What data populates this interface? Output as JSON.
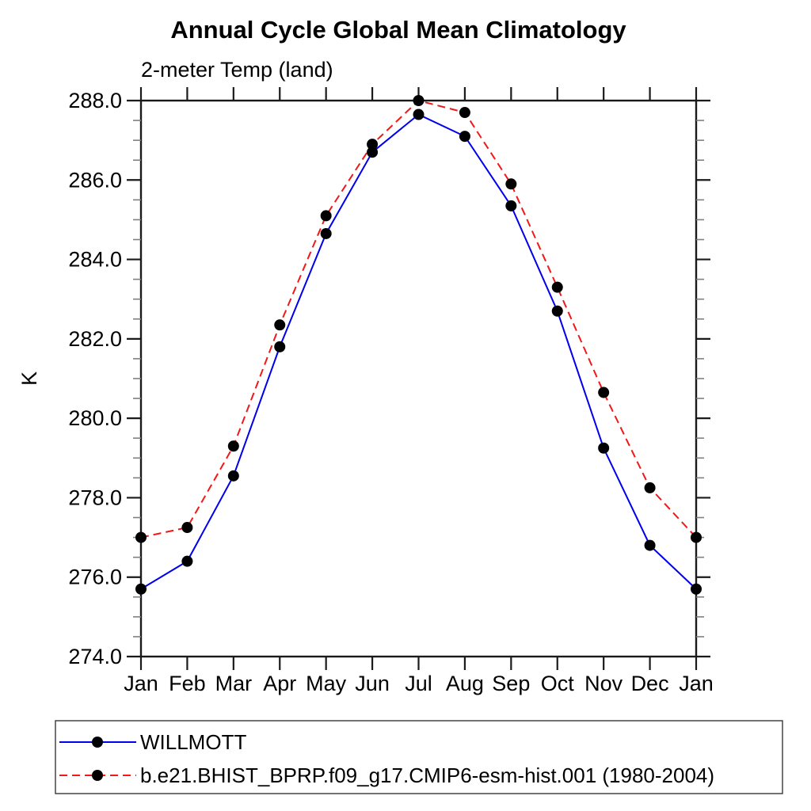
{
  "title": "Annual Cycle Global Mean Climatology",
  "subtitle": "2-meter Temp (land)",
  "colors": {
    "background": "#ffffff",
    "axis": "#1a1a1a",
    "minor_tick": "#808080",
    "marker": "#000000",
    "series_blue": "#0000ee",
    "series_red": "#f01818"
  },
  "chart_data": {
    "type": "line",
    "title": "Annual Cycle Global Mean Climatology",
    "subtitle": "2-meter Temp (land)",
    "xlabel": "",
    "ylabel": "K",
    "x_categories": [
      "Jan",
      "Feb",
      "Mar",
      "Apr",
      "May",
      "Jun",
      "Jul",
      "Aug",
      "Sep",
      "Oct",
      "Nov",
      "Dec",
      "Jan"
    ],
    "ylim": [
      274.0,
      288.0
    ],
    "y_major_ticks": [
      {
        "value": 274,
        "label": "274.0"
      },
      {
        "value": 276,
        "label": "276.0"
      },
      {
        "value": 278,
        "label": "278.0"
      },
      {
        "value": 280,
        "label": "280.0"
      },
      {
        "value": 282,
        "label": "282.0"
      },
      {
        "value": 284,
        "label": "284.0"
      },
      {
        "value": 286,
        "label": "286.0"
      },
      {
        "value": 288,
        "label": "288.0"
      }
    ],
    "y_minor_step": 0.5,
    "grid": false,
    "legend_position": "bottom-left box",
    "series": [
      {
        "name": "WILLMOTT",
        "color": "#0000ee",
        "style": "solid",
        "marker": "circle",
        "marker_color": "#000000",
        "values": [
          275.7,
          276.4,
          278.55,
          281.8,
          284.65,
          286.7,
          287.65,
          287.1,
          285.35,
          282.7,
          279.25,
          276.8,
          275.7
        ]
      },
      {
        "name": "b.e21.BHIST_BPRP.f09_g17.CMIP6-esm-hist.001 (1980-2004)",
        "color": "#f01818",
        "style": "dashed",
        "marker": "circle",
        "marker_color": "#000000",
        "values": [
          277.0,
          277.25,
          279.3,
          282.35,
          285.1,
          286.9,
          288.0,
          287.7,
          285.9,
          283.3,
          280.65,
          278.25,
          277.0
        ]
      }
    ]
  }
}
